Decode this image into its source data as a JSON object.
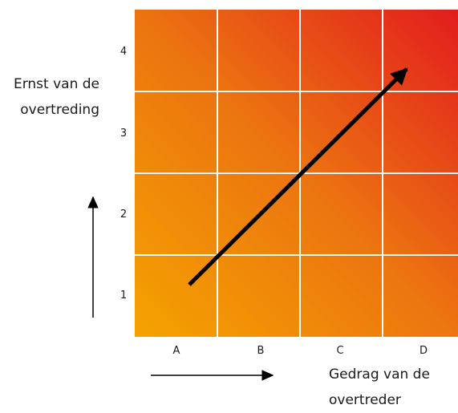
{
  "diagram": {
    "colors": {
      "gradient_start": "#f5a200",
      "gradient_mid": "#ec7410",
      "gradient_end": "#e21a1e",
      "grid_lines": "#ffffff",
      "arrow": "#000000"
    },
    "y_axis": {
      "title_lines": [
        "Ernst van de",
        "overtreding"
      ],
      "ticks": [
        "1",
        "2",
        "3",
        "4"
      ]
    },
    "x_axis": {
      "title_lines": [
        "Gedrag van de",
        "overtreder"
      ],
      "ticks": [
        "A",
        "B",
        "C",
        "D"
      ]
    },
    "trend_arrow": {
      "from": {
        "col": 1,
        "row": 1
      },
      "to": {
        "col": 4,
        "row": 4
      }
    }
  }
}
